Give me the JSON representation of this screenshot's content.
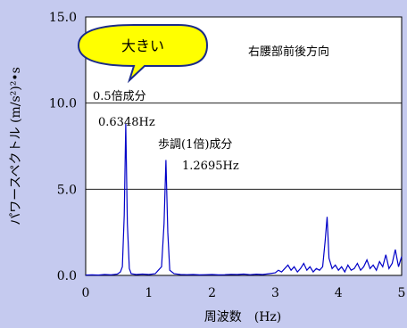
{
  "chart_data": {
    "type": "line",
    "title": "",
    "xlabel": "周波数　(Hz)",
    "ylabel": "パワースペクトル (m/s²)²•s",
    "xlim": [
      0,
      5
    ],
    "ylim": [
      0,
      15
    ],
    "x_ticks": [
      "0",
      "1",
      "2",
      "3",
      "4",
      "5"
    ],
    "y_ticks": [
      "0.0",
      "5.0",
      "10.0",
      "15.0"
    ],
    "grid": "horizontal",
    "colors": {
      "line": "#0000c8",
      "background": "#c5caef",
      "plot": "#ffffff",
      "callout": "#ffff00"
    },
    "series": [
      {
        "x": [
          0.0,
          0.1,
          0.2,
          0.3,
          0.4,
          0.5,
          0.55,
          0.58,
          0.61,
          0.6348,
          0.66,
          0.69,
          0.72,
          0.8,
          0.9,
          1.0,
          1.1,
          1.15,
          1.2,
          1.24,
          1.2695,
          1.3,
          1.33,
          1.4,
          1.5,
          1.6,
          1.7,
          1.8,
          1.9,
          2.0,
          2.1,
          2.2,
          2.3,
          2.4,
          2.5,
          2.6,
          2.7,
          2.8,
          2.9,
          3.0,
          3.05,
          3.1,
          3.15,
          3.2,
          3.25,
          3.3,
          3.35,
          3.4,
          3.45,
          3.5,
          3.55,
          3.6,
          3.65,
          3.7,
          3.75,
          3.79,
          3.82,
          3.85,
          3.9,
          3.95,
          4.0,
          4.05,
          4.1,
          4.15,
          4.2,
          4.25,
          4.3,
          4.35,
          4.4,
          4.45,
          4.5,
          4.55,
          4.6,
          4.65,
          4.7,
          4.75,
          4.8,
          4.85,
          4.9,
          4.95,
          5.0
        ],
        "y": [
          0.02,
          0.03,
          0.02,
          0.05,
          0.03,
          0.08,
          0.2,
          0.5,
          3.5,
          8.8,
          3.0,
          0.4,
          0.1,
          0.05,
          0.08,
          0.05,
          0.1,
          0.3,
          0.5,
          3.0,
          6.7,
          2.5,
          0.3,
          0.1,
          0.05,
          0.04,
          0.05,
          0.03,
          0.04,
          0.05,
          0.03,
          0.04,
          0.06,
          0.05,
          0.08,
          0.04,
          0.07,
          0.05,
          0.1,
          0.15,
          0.3,
          0.2,
          0.4,
          0.6,
          0.3,
          0.5,
          0.2,
          0.4,
          0.7,
          0.3,
          0.5,
          0.2,
          0.4,
          0.3,
          0.5,
          2.0,
          3.4,
          1.0,
          0.4,
          0.6,
          0.3,
          0.5,
          0.2,
          0.6,
          0.3,
          0.4,
          0.7,
          0.3,
          0.5,
          0.9,
          0.4,
          0.6,
          0.3,
          0.8,
          0.5,
          1.2,
          0.4,
          0.7,
          1.5,
          0.5,
          1.1
        ]
      }
    ],
    "annotations": {
      "location": "右腰部前後方向",
      "half_harmonic_label": "0.5倍成分",
      "half_harmonic_freq": "0.6348Hz",
      "step_label": "歩調(1倍)成分",
      "step_freq": "1.2695Hz"
    },
    "callout": {
      "text": "大きい"
    }
  }
}
